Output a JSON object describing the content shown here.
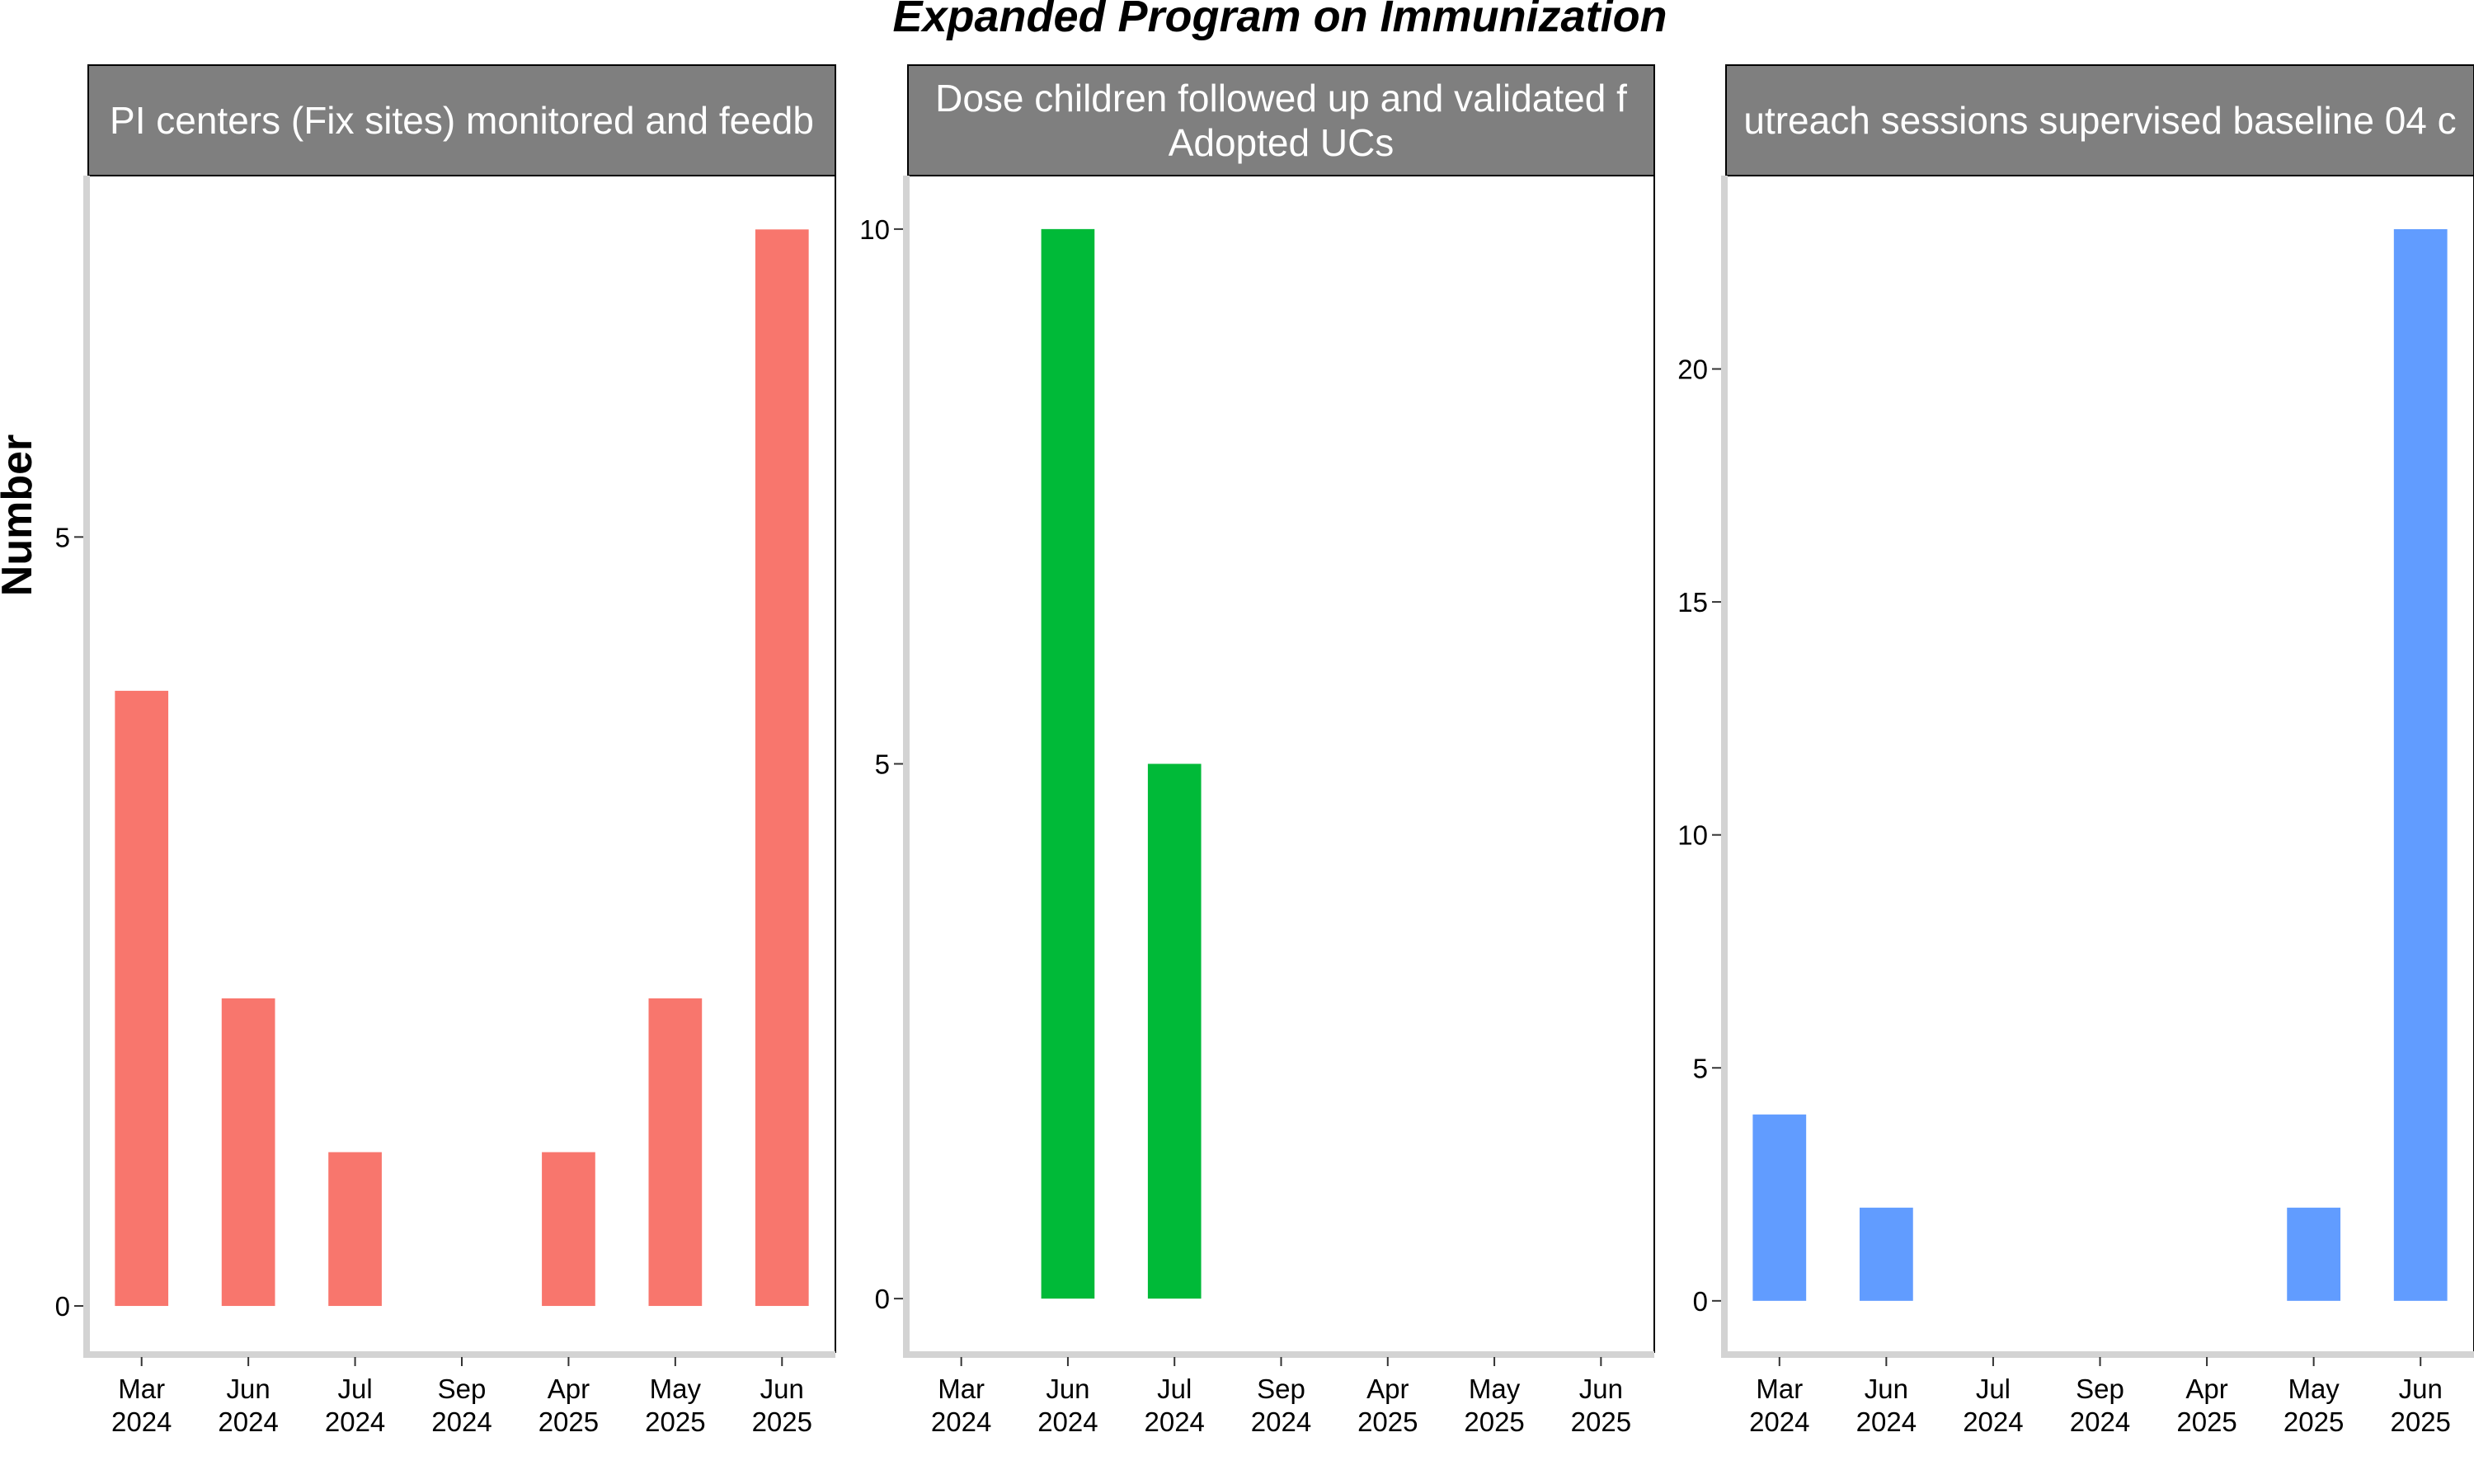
{
  "figure": {
    "title": "Expanded Program on Immunization",
    "ylabel": "Number"
  },
  "chart_data": [
    {
      "type": "bar",
      "title_lines": [
        "PI centers (Fix sites) monitored and feedb"
      ],
      "color": "#F8766D",
      "categories": [
        "Mar\n2024",
        "Jun\n2024",
        "Jul\n2024",
        "Sep\n2024",
        "Apr\n2025",
        "May\n2025",
        "Jun\n2025"
      ],
      "values": [
        4,
        2,
        1,
        null,
        1,
        2,
        7
      ],
      "ylim": [
        -0.3,
        7.35
      ],
      "yticks": [
        0,
        5
      ]
    },
    {
      "type": "bar",
      "title_lines": [
        "Dose children followed up and validated f",
        "Adopted UCs"
      ],
      "color": "#00BA38",
      "categories": [
        "Mar\n2024",
        "Jun\n2024",
        "Jul\n2024",
        "Sep\n2024",
        "Apr\n2025",
        "May\n2025",
        "Jun\n2025"
      ],
      "values": [
        null,
        10,
        5,
        null,
        null,
        null,
        null
      ],
      "ylim": [
        -0.5,
        10.5
      ],
      "yticks": [
        0,
        5,
        10
      ]
    },
    {
      "type": "bar",
      "title_lines": [
        "utreach sessions supervised baseline 04 c"
      ],
      "color": "#619CFF",
      "categories": [
        "Mar\n2024",
        "Jun\n2024",
        "Jul\n2024",
        "Sep\n2024",
        "Apr\n2025",
        "May\n2025",
        "Jun\n2025"
      ],
      "values": [
        4,
        2,
        null,
        null,
        null,
        2,
        23
      ],
      "ylim": [
        -1.1,
        24.15
      ],
      "yticks": [
        0,
        5,
        10,
        15,
        20
      ]
    }
  ]
}
